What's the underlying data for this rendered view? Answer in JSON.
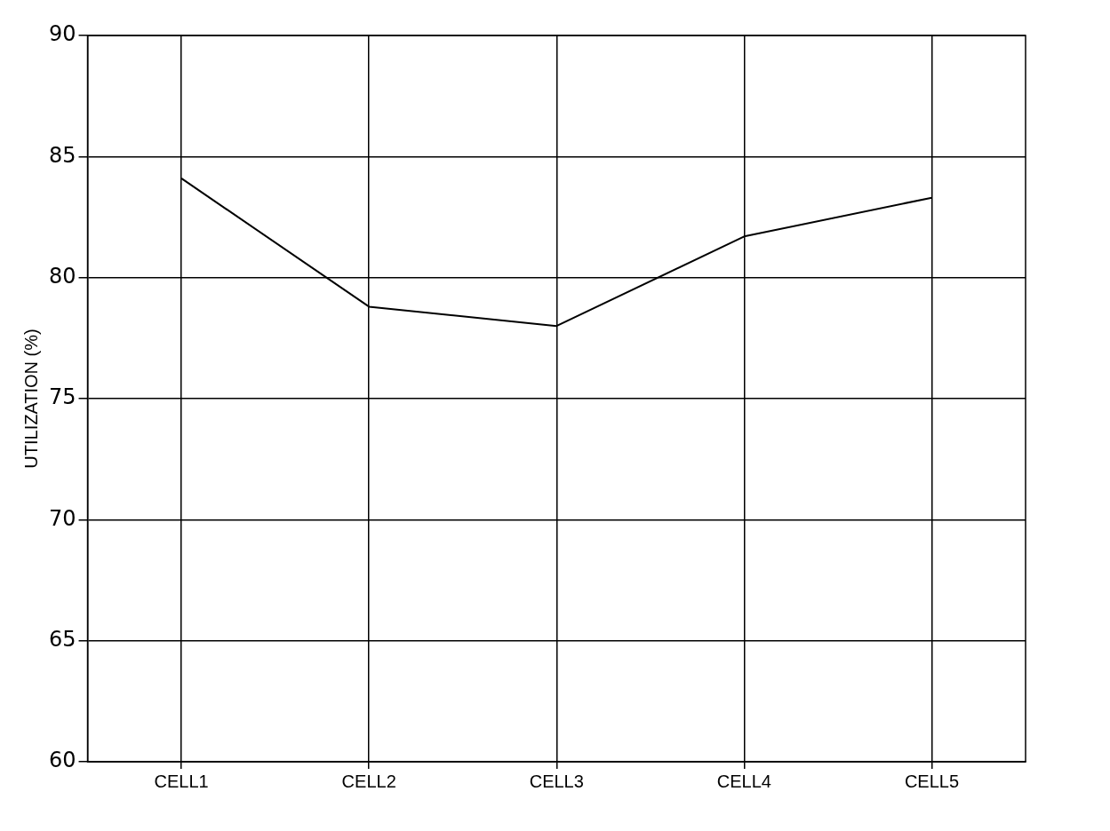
{
  "chart_data": {
    "type": "line",
    "ylabel": "UTILIZATION (%)",
    "categories": [
      "CELL1",
      "CELL2",
      "CELL3",
      "CELL4",
      "CELL5"
    ],
    "series": [
      {
        "color": "#000000",
        "values": [
          84.1,
          78.8,
          78.0,
          81.7,
          83.3
        ]
      }
    ],
    "ylim": [
      60,
      90
    ],
    "yticks": [
      60,
      65,
      70,
      75,
      80,
      85,
      90
    ],
    "grid": true,
    "legend": false,
    "marker": "none",
    "line_style": "solid"
  }
}
